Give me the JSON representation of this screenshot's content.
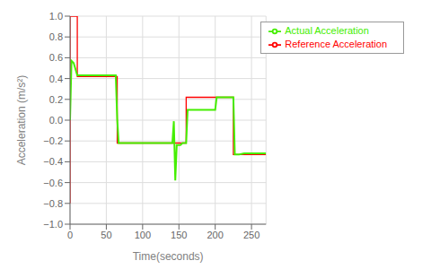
{
  "chart_data": {
    "type": "line",
    "xlabel": "Time(seconds)",
    "ylabel": "Acceleration (m/s²)",
    "xlim": [
      0,
      270
    ],
    "ylim": [
      -1,
      1
    ],
    "xticks": [
      0,
      50,
      100,
      150,
      200,
      250
    ],
    "yticks": [
      {
        "value": -1,
        "label": "−1.0"
      },
      {
        "value": -0.8,
        "label": "−0.8"
      },
      {
        "value": -0.6,
        "label": "−0.6"
      },
      {
        "value": -0.4,
        "label": "−0.4"
      },
      {
        "value": -0.2,
        "label": "−0.2"
      },
      {
        "value": 0,
        "label": "0.0"
      },
      {
        "value": 0.2,
        "label": "0.2"
      },
      {
        "value": 0.4,
        "label": "0.4"
      },
      {
        "value": 0.6,
        "label": "0.6"
      },
      {
        "value": 0.8,
        "label": "0.8"
      },
      {
        "value": 1,
        "label": "1.0"
      }
    ],
    "grid": true,
    "legend": "upper right",
    "series": [
      {
        "name": "Reference Acceleration",
        "color": "#ff0000",
        "x": [
          0,
          0,
          10,
          10,
          65,
          65,
          145,
          145,
          160,
          160,
          225,
          225,
          270
        ],
        "values": [
          -0.8,
          1.0,
          1.0,
          0.42,
          0.42,
          -0.22,
          -0.22,
          -0.22,
          -0.22,
          0.22,
          0.22,
          -0.33,
          -0.33
        ]
      },
      {
        "name": "Actual Acceleration",
        "color": "#44ee00",
        "x": [
          0,
          2,
          5,
          10,
          11,
          63,
          65,
          67,
          140,
          141,
          143,
          145,
          147,
          152,
          155,
          160,
          162,
          165,
          199,
          200,
          202,
          224,
          225,
          227,
          233,
          240,
          270
        ],
        "values": [
          0.0,
          0.57,
          0.55,
          0.43,
          0.43,
          0.43,
          0.01,
          -0.22,
          -0.22,
          -0.22,
          -0.01,
          -0.58,
          -0.24,
          -0.24,
          -0.22,
          -0.22,
          0.1,
          0.1,
          0.1,
          0.1,
          0.22,
          0.22,
          0.22,
          -0.33,
          -0.33,
          -0.32,
          -0.32
        ]
      }
    ]
  }
}
